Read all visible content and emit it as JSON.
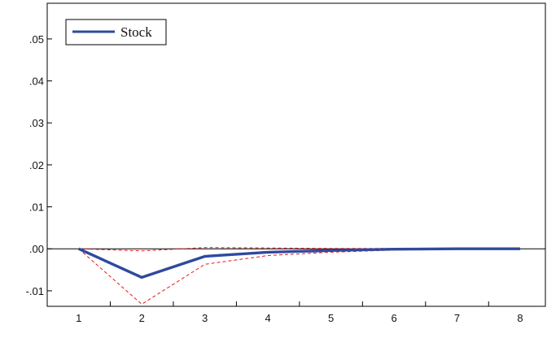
{
  "chart_data": {
    "type": "line",
    "title": "",
    "xlabel": "",
    "ylabel": "",
    "x": [
      1,
      2,
      3,
      4,
      5,
      6,
      7,
      8
    ],
    "xlim": [
      0.5,
      8.4
    ],
    "ylim": [
      -0.0137,
      0.0585
    ],
    "x_ticks": [
      "1",
      "2",
      "3",
      "4",
      "5",
      "6",
      "7",
      "8"
    ],
    "y_ticks": [
      {
        "value": 0.05,
        "label": ".05"
      },
      {
        "value": 0.04,
        "label": ".04"
      },
      {
        "value": 0.03,
        "label": ".03"
      },
      {
        "value": 0.02,
        "label": ".02"
      },
      {
        "value": 0.01,
        "label": ".01"
      },
      {
        "value": 0.0,
        "label": ".00"
      },
      {
        "value": -0.01,
        "label": "-.01"
      }
    ],
    "grid": false,
    "legend": {
      "placement": "top-left",
      "entries": [
        "Stock"
      ]
    },
    "zero_line": true,
    "series": [
      {
        "name": "Stock",
        "role": "response",
        "color": "#2e4a9e",
        "style": "solid",
        "values": [
          0.0,
          -0.0068,
          -0.0018,
          -0.0008,
          -0.0004,
          -0.0001,
          0.0,
          0.0
        ]
      },
      {
        "role": "upper-band",
        "color": "#e01818",
        "style": "dashed",
        "values": [
          0.0,
          -0.0005,
          0.0003,
          0.0002,
          0.0001,
          0.0001,
          0.0001,
          0.0001
        ]
      },
      {
        "role": "lower-band",
        "color": "#e01818",
        "style": "dashed",
        "values": [
          0.0,
          -0.0132,
          -0.0037,
          -0.0016,
          -0.0008,
          -0.0003,
          -0.0001,
          -0.0001
        ]
      }
    ]
  }
}
